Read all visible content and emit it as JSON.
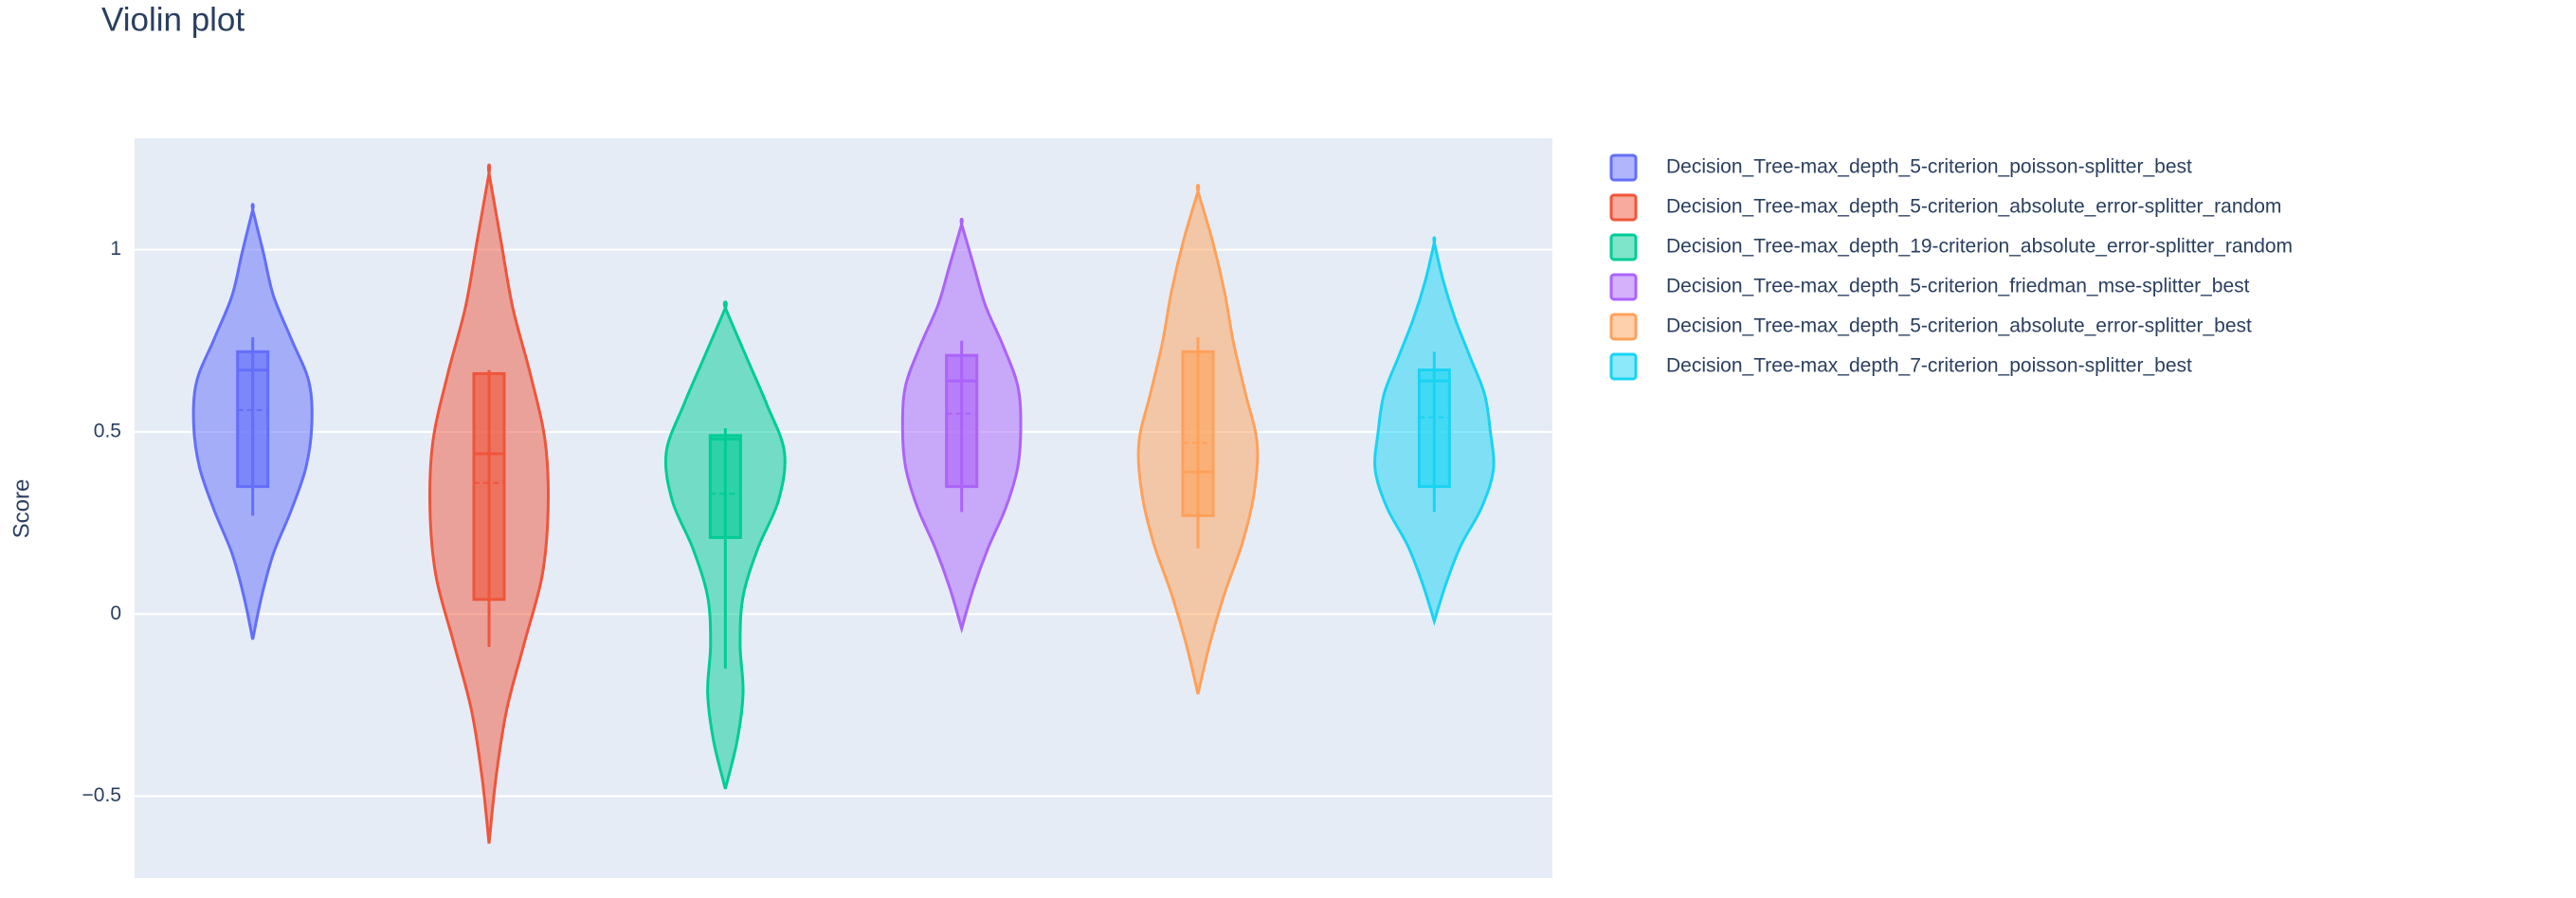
{
  "chart_data": {
    "type": "violin",
    "title": "Violin plot",
    "y_label": "Score",
    "ylim": [
      -0.725,
      1.306
    ],
    "yticks": [
      {
        "value": -0.5,
        "label": "−0.5"
      },
      0,
      0.5,
      1
    ],
    "grid": true,
    "legend": "right",
    "series": [
      {
        "name": "Decision_Tree-max_depth_5-criterion_poisson-splitter_best",
        "color": "#636efa",
        "min": -0.07,
        "max": 1.11,
        "density": [
          0,
          0.15,
          0.35,
          0.65,
          0.9,
          1.0,
          0.95,
          0.65,
          0.35,
          0.18,
          0
        ],
        "q1": 0.35,
        "median": 0.67,
        "q3": 0.72,
        "mean": 0.56,
        "lower_whisker": 0.27,
        "upper_whisker": 0.76
      },
      {
        "name": "Decision_Tree-max_depth_5-criterion_absolute_error-splitter_random",
        "color": "#ef553b",
        "min": -0.63,
        "max": 1.21,
        "density": [
          0,
          0.12,
          0.3,
          0.6,
          0.9,
          1.0,
          0.95,
          0.7,
          0.4,
          0.2,
          0
        ],
        "q1": 0.04,
        "median": 0.44,
        "q3": 0.66,
        "mean": 0.36,
        "lower_whisker": -0.09,
        "upper_whisker": 0.67
      },
      {
        "name": "Decision_Tree-max_depth_19-criterion_absolute_error-splitter_random",
        "color": "#00cc96",
        "min": -0.48,
        "max": 0.84,
        "density": [
          0,
          0.2,
          0.3,
          0.25,
          0.3,
          0.55,
          0.9,
          1.0,
          0.7,
          0.35,
          0
        ],
        "q1": 0.21,
        "median": 0.48,
        "q3": 0.49,
        "mean": 0.33,
        "lower_whisker": -0.15,
        "upper_whisker": 0.51
      },
      {
        "name": "Decision_Tree-max_depth_5-criterion_friedman_mse-splitter_best",
        "color": "#ab63fa",
        "min": -0.04,
        "max": 1.07,
        "density": [
          0,
          0.2,
          0.45,
          0.75,
          0.95,
          1.0,
          0.95,
          0.7,
          0.4,
          0.2,
          0
        ],
        "q1": 0.35,
        "median": 0.64,
        "q3": 0.71,
        "mean": 0.55,
        "lower_whisker": 0.28,
        "upper_whisker": 0.75
      },
      {
        "name": "Decision_Tree-max_depth_5-criterion_absolute_error-splitter_best",
        "color": "#ffa15a",
        "min": -0.22,
        "max": 1.16,
        "density": [
          0,
          0.2,
          0.45,
          0.75,
          0.95,
          1.0,
          0.8,
          0.6,
          0.45,
          0.25,
          0
        ],
        "q1": 0.27,
        "median": 0.39,
        "q3": 0.72,
        "mean": 0.47,
        "lower_whisker": 0.18,
        "upper_whisker": 0.76
      },
      {
        "name": "Decision_Tree-max_depth_7-criterion_poisson-splitter_best",
        "color": "#19d3f3",
        "min": -0.02,
        "max": 1.02,
        "density": [
          0,
          0.2,
          0.45,
          0.8,
          1.0,
          0.95,
          0.85,
          0.6,
          0.35,
          0.15,
          0
        ],
        "q1": 0.35,
        "median": 0.64,
        "q3": 0.67,
        "mean": 0.54,
        "lower_whisker": 0.28,
        "upper_whisker": 0.72
      }
    ]
  }
}
